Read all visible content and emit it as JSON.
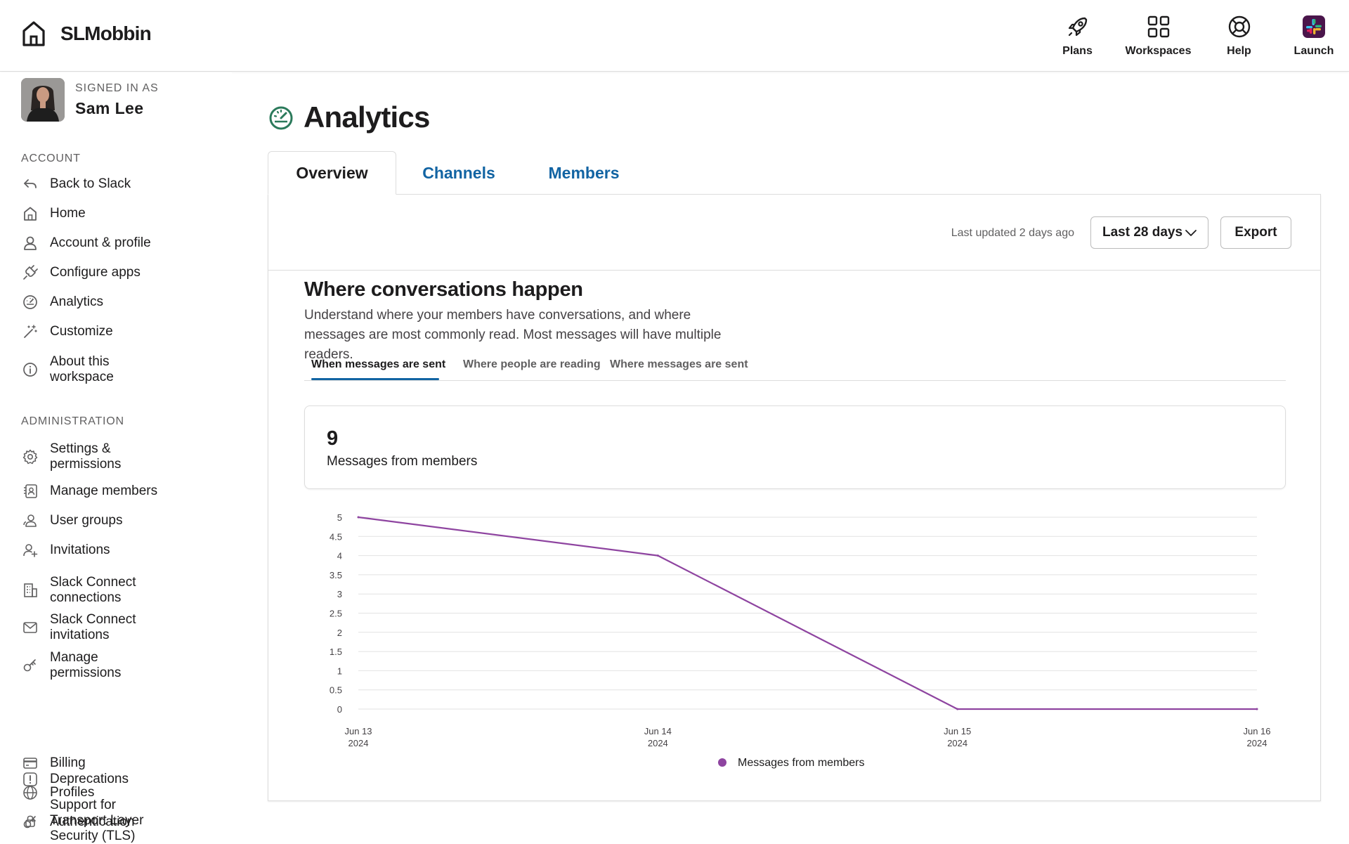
{
  "header": {
    "brand": "SLMobbin",
    "nav": [
      {
        "label": "Plans",
        "icon": "rocket-icon"
      },
      {
        "label": "Workspaces",
        "icon": "grid-icon"
      },
      {
        "label": "Help",
        "icon": "lifebuoy-icon"
      },
      {
        "label": "Launch",
        "icon": "slack-logo-icon"
      }
    ]
  },
  "sidebar": {
    "signed_in_label": "SIGNED IN AS",
    "user_name": "Sam Lee",
    "account_title": "ACCOUNT",
    "account_items": [
      {
        "label": "Back to Slack",
        "icon": "back-arrow-icon"
      },
      {
        "label": "Home",
        "icon": "home-icon"
      },
      {
        "label": "Account & profile",
        "icon": "person-icon"
      },
      {
        "label": "Configure apps",
        "icon": "plug-icon"
      },
      {
        "label": "Analytics",
        "icon": "gauge-icon"
      },
      {
        "label": "Customize",
        "icon": "magic-wand-icon"
      },
      {
        "label": "About this workspace",
        "icon": "info-icon"
      }
    ],
    "admin_title": "ADMINISTRATION",
    "admin_items": [
      {
        "label": "Settings & permissions",
        "icon": "gear-icon"
      },
      {
        "label": "Manage members",
        "icon": "member-list-icon"
      },
      {
        "label": "User groups",
        "icon": "user-group-icon"
      },
      {
        "label": "Invitations",
        "icon": "add-person-icon"
      },
      {
        "label": "Slack Connect connections",
        "icon": "building-icon"
      },
      {
        "label": "Slack Connect invitations",
        "icon": "envelope-icon"
      },
      {
        "label": "Manage permissions",
        "icon": "key-icon"
      },
      {
        "label": "Billing",
        "icon": "credit-card-icon"
      },
      {
        "label": "Profiles",
        "icon": "globe-icon"
      },
      {
        "label": "Authentication",
        "icon": "key-icon"
      },
      {
        "label": "Deprecations",
        "icon": "alert-icon"
      },
      {
        "label": "Support for Transport Layer Security (TLS)",
        "icon": "lock-icon"
      }
    ]
  },
  "main": {
    "title": "Analytics",
    "tabs": [
      {
        "label": "Overview"
      },
      {
        "label": "Channels"
      },
      {
        "label": "Members"
      }
    ],
    "last_updated": "Last updated 2 days ago",
    "range_select": "Last 28 days",
    "export_label": "Export",
    "section_title": "Where conversations happen",
    "section_desc": "Understand where your members have conversations, and where messages are most commonly read. Most messages will have multiple readers.",
    "subtabs": [
      {
        "label": "When messages are sent"
      },
      {
        "label": "Where people are reading"
      },
      {
        "label": "Where messages are sent"
      }
    ],
    "stat": {
      "value": "9",
      "label": "Messages from members"
    }
  },
  "colors": {
    "accent": "#1264a3",
    "series": "#8e44a0",
    "analytics_icon": "#2b7a5b"
  },
  "chart_data": {
    "type": "line",
    "x": [
      {
        "line1": "Jun 13",
        "line2": "2024"
      },
      {
        "line1": "Jun 14",
        "line2": "2024"
      },
      {
        "line1": "Jun 15",
        "line2": "2024"
      },
      {
        "line1": "Jun 16",
        "line2": "2024"
      }
    ],
    "series": [
      {
        "name": "Messages from members",
        "values": [
          5,
          4,
          0,
          0
        ]
      }
    ],
    "ylim": [
      0,
      5
    ],
    "yticks": [
      "0",
      "0.5",
      "1",
      "1.5",
      "2",
      "2.5",
      "3",
      "3.5",
      "4",
      "4.5",
      "5"
    ],
    "grid": true,
    "legend": "bottom"
  }
}
